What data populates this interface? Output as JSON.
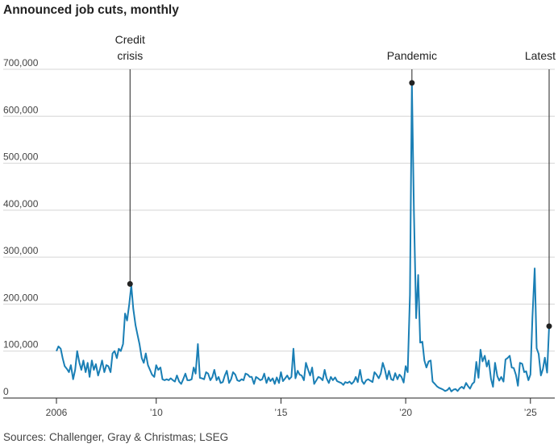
{
  "chart_data": {
    "type": "line",
    "title": "Announced job cuts, monthly",
    "source": "Sources: Challenger, Gray & Christmas; LSEG",
    "ylim": [
      0,
      700000
    ],
    "yticks": [
      {
        "value": 0,
        "label": "0"
      },
      {
        "value": 100000,
        "label": "100,000"
      },
      {
        "value": 200000,
        "label": "200,000"
      },
      {
        "value": 300000,
        "label": "300,000"
      },
      {
        "value": 400000,
        "label": "400,000"
      },
      {
        "value": 500000,
        "label": "500,000"
      },
      {
        "value": 600000,
        "label": "600,000"
      },
      {
        "value": 700000,
        "label": "700,000"
      }
    ],
    "xticks": [
      {
        "value": 2006.0,
        "label": "2006"
      },
      {
        "value": 2010.0,
        "label": "’10"
      },
      {
        "value": 2015.0,
        "label": "’15"
      },
      {
        "value": 2020.0,
        "label": "’20"
      },
      {
        "value": 2025.0,
        "label": "’25"
      }
    ],
    "xlim": [
      2005.9,
      2026.0
    ],
    "grid": true,
    "line_color": "#1a7fb5",
    "annotations": [
      {
        "label_lines": [
          "Credit",
          "crisis"
        ],
        "x": 2008.95,
        "y": 243000
      },
      {
        "label_lines": [
          "Pandemic"
        ],
        "x": 2020.25,
        "y": 671000
      },
      {
        "label_lines": [
          "Latest"
        ],
        "x": 2025.75,
        "y": 153000
      }
    ],
    "series": [
      {
        "points": [
          [
            2006.0,
            100000
          ],
          [
            2006.08,
            110000
          ],
          [
            2006.17,
            105000
          ],
          [
            2006.25,
            85000
          ],
          [
            2006.33,
            68000
          ],
          [
            2006.42,
            62000
          ],
          [
            2006.5,
            55000
          ],
          [
            2006.58,
            70000
          ],
          [
            2006.67,
            40000
          ],
          [
            2006.75,
            60000
          ],
          [
            2006.83,
            100000
          ],
          [
            2006.92,
            75000
          ],
          [
            2007.0,
            60000
          ],
          [
            2007.08,
            80000
          ],
          [
            2007.17,
            55000
          ],
          [
            2007.25,
            75000
          ],
          [
            2007.33,
            45000
          ],
          [
            2007.42,
            80000
          ],
          [
            2007.5,
            60000
          ],
          [
            2007.58,
            72000
          ],
          [
            2007.67,
            48000
          ],
          [
            2007.75,
            62000
          ],
          [
            2007.83,
            80000
          ],
          [
            2007.92,
            55000
          ],
          [
            2008.0,
            70000
          ],
          [
            2008.08,
            68000
          ],
          [
            2008.17,
            55000
          ],
          [
            2008.25,
            95000
          ],
          [
            2008.33,
            100000
          ],
          [
            2008.42,
            85000
          ],
          [
            2008.5,
            105000
          ],
          [
            2008.58,
            100000
          ],
          [
            2008.67,
            115000
          ],
          [
            2008.75,
            180000
          ],
          [
            2008.83,
            165000
          ],
          [
            2008.92,
            200000
          ],
          [
            2009.0,
            240000
          ],
          [
            2009.08,
            190000
          ],
          [
            2009.17,
            155000
          ],
          [
            2009.25,
            135000
          ],
          [
            2009.33,
            115000
          ],
          [
            2009.42,
            85000
          ],
          [
            2009.5,
            75000
          ],
          [
            2009.58,
            95000
          ],
          [
            2009.67,
            70000
          ],
          [
            2009.75,
            60000
          ],
          [
            2009.83,
            50000
          ],
          [
            2009.92,
            45000
          ],
          [
            2010.0,
            70000
          ],
          [
            2010.08,
            60000
          ],
          [
            2010.17,
            65000
          ],
          [
            2010.25,
            40000
          ],
          [
            2010.33,
            38000
          ],
          [
            2010.42,
            40000
          ],
          [
            2010.5,
            38000
          ],
          [
            2010.58,
            42000
          ],
          [
            2010.67,
            38000
          ],
          [
            2010.75,
            35000
          ],
          [
            2010.83,
            48000
          ],
          [
            2010.92,
            35000
          ],
          [
            2011.0,
            30000
          ],
          [
            2011.08,
            40000
          ],
          [
            2011.17,
            52000
          ],
          [
            2011.25,
            38000
          ],
          [
            2011.33,
            38000
          ],
          [
            2011.42,
            40000
          ],
          [
            2011.5,
            65000
          ],
          [
            2011.58,
            52000
          ],
          [
            2011.67,
            115000
          ],
          [
            2011.75,
            43000
          ],
          [
            2011.83,
            42000
          ],
          [
            2011.92,
            40000
          ],
          [
            2012.0,
            55000
          ],
          [
            2012.08,
            52000
          ],
          [
            2012.17,
            38000
          ],
          [
            2012.25,
            45000
          ],
          [
            2012.33,
            60000
          ],
          [
            2012.42,
            38000
          ],
          [
            2012.5,
            45000
          ],
          [
            2012.58,
            32000
          ],
          [
            2012.67,
            34000
          ],
          [
            2012.75,
            48000
          ],
          [
            2012.83,
            58000
          ],
          [
            2012.92,
            32000
          ],
          [
            2013.0,
            40000
          ],
          [
            2013.08,
            55000
          ],
          [
            2013.17,
            50000
          ],
          [
            2013.25,
            38000
          ],
          [
            2013.33,
            36000
          ],
          [
            2013.42,
            40000
          ],
          [
            2013.5,
            38000
          ],
          [
            2013.58,
            52000
          ],
          [
            2013.67,
            50000
          ],
          [
            2013.75,
            45000
          ],
          [
            2013.83,
            45000
          ],
          [
            2013.92,
            30000
          ],
          [
            2014.0,
            45000
          ],
          [
            2014.08,
            42000
          ],
          [
            2014.17,
            38000
          ],
          [
            2014.25,
            40000
          ],
          [
            2014.33,
            52000
          ],
          [
            2014.42,
            32000
          ],
          [
            2014.5,
            44000
          ],
          [
            2014.58,
            36000
          ],
          [
            2014.67,
            42000
          ],
          [
            2014.75,
            30000
          ],
          [
            2014.83,
            44000
          ],
          [
            2014.92,
            32000
          ],
          [
            2015.0,
            55000
          ],
          [
            2015.08,
            36000
          ],
          [
            2015.17,
            42000
          ],
          [
            2015.25,
            48000
          ],
          [
            2015.33,
            40000
          ],
          [
            2015.42,
            45000
          ],
          [
            2015.5,
            105000
          ],
          [
            2015.58,
            42000
          ],
          [
            2015.67,
            58000
          ],
          [
            2015.75,
            50000
          ],
          [
            2015.83,
            48000
          ],
          [
            2015.92,
            38000
          ],
          [
            2016.0,
            75000
          ],
          [
            2016.08,
            62000
          ],
          [
            2016.17,
            48000
          ],
          [
            2016.25,
            65000
          ],
          [
            2016.33,
            30000
          ],
          [
            2016.42,
            38000
          ],
          [
            2016.5,
            45000
          ],
          [
            2016.58,
            43000
          ],
          [
            2016.67,
            38000
          ],
          [
            2016.75,
            60000
          ],
          [
            2016.83,
            42000
          ],
          [
            2016.92,
            32000
          ],
          [
            2017.0,
            45000
          ],
          [
            2017.08,
            38000
          ],
          [
            2017.17,
            44000
          ],
          [
            2017.25,
            36000
          ],
          [
            2017.33,
            34000
          ],
          [
            2017.42,
            32000
          ],
          [
            2017.5,
            28000
          ],
          [
            2017.58,
            34000
          ],
          [
            2017.67,
            32000
          ],
          [
            2017.75,
            35000
          ],
          [
            2017.83,
            30000
          ],
          [
            2017.92,
            35000
          ],
          [
            2018.0,
            45000
          ],
          [
            2018.08,
            34000
          ],
          [
            2018.17,
            60000
          ],
          [
            2018.25,
            36000
          ],
          [
            2018.33,
            30000
          ],
          [
            2018.42,
            38000
          ],
          [
            2018.5,
            40000
          ],
          [
            2018.58,
            37000
          ],
          [
            2018.67,
            34000
          ],
          [
            2018.75,
            55000
          ],
          [
            2018.83,
            50000
          ],
          [
            2018.92,
            42000
          ],
          [
            2019.0,
            52000
          ],
          [
            2019.08,
            75000
          ],
          [
            2019.17,
            60000
          ],
          [
            2019.25,
            40000
          ],
          [
            2019.33,
            58000
          ],
          [
            2019.42,
            40000
          ],
          [
            2019.5,
            38000
          ],
          [
            2019.58,
            53000
          ],
          [
            2019.67,
            40000
          ],
          [
            2019.75,
            50000
          ],
          [
            2019.83,
            45000
          ],
          [
            2019.92,
            33000
          ],
          [
            2020.0,
            68000
          ],
          [
            2020.08,
            55000
          ],
          [
            2020.17,
            220000
          ],
          [
            2020.25,
            671000
          ],
          [
            2020.33,
            400000
          ],
          [
            2020.42,
            170000
          ],
          [
            2020.5,
            262000
          ],
          [
            2020.58,
            118000
          ],
          [
            2020.67,
            120000
          ],
          [
            2020.75,
            80000
          ],
          [
            2020.83,
            65000
          ],
          [
            2020.92,
            78000
          ],
          [
            2021.0,
            80000
          ],
          [
            2021.08,
            35000
          ],
          [
            2021.17,
            30000
          ],
          [
            2021.25,
            25000
          ],
          [
            2021.33,
            22000
          ],
          [
            2021.42,
            20000
          ],
          [
            2021.5,
            18000
          ],
          [
            2021.58,
            15000
          ],
          [
            2021.67,
            17000
          ],
          [
            2021.75,
            22000
          ],
          [
            2021.83,
            14000
          ],
          [
            2021.92,
            18000
          ],
          [
            2022.0,
            19000
          ],
          [
            2022.08,
            15000
          ],
          [
            2022.17,
            21000
          ],
          [
            2022.25,
            24000
          ],
          [
            2022.33,
            20000
          ],
          [
            2022.42,
            32000
          ],
          [
            2022.5,
            25000
          ],
          [
            2022.58,
            20000
          ],
          [
            2022.67,
            30000
          ],
          [
            2022.75,
            34000
          ],
          [
            2022.83,
            77000
          ],
          [
            2022.92,
            43000
          ],
          [
            2023.0,
            103000
          ],
          [
            2023.08,
            78000
          ],
          [
            2023.17,
            90000
          ],
          [
            2023.25,
            67000
          ],
          [
            2023.33,
            80000
          ],
          [
            2023.42,
            41000
          ],
          [
            2023.5,
            24000
          ],
          [
            2023.58,
            75000
          ],
          [
            2023.67,
            47000
          ],
          [
            2023.75,
            37000
          ],
          [
            2023.83,
            45000
          ],
          [
            2023.92,
            35000
          ],
          [
            2024.0,
            82000
          ],
          [
            2024.08,
            85000
          ],
          [
            2024.17,
            90000
          ],
          [
            2024.25,
            65000
          ],
          [
            2024.33,
            64000
          ],
          [
            2024.42,
            49000
          ],
          [
            2024.5,
            26000
          ],
          [
            2024.58,
            75000
          ],
          [
            2024.67,
            73000
          ],
          [
            2024.75,
            55000
          ],
          [
            2024.83,
            57000
          ],
          [
            2024.92,
            38000
          ],
          [
            2025.0,
            50000
          ],
          [
            2025.08,
            172000
          ],
          [
            2025.17,
            276000
          ],
          [
            2025.25,
            106000
          ],
          [
            2025.33,
            94000
          ],
          [
            2025.42,
            48000
          ],
          [
            2025.5,
            62000
          ],
          [
            2025.58,
            86000
          ],
          [
            2025.67,
            54000
          ],
          [
            2025.75,
            153000
          ]
        ]
      }
    ]
  }
}
